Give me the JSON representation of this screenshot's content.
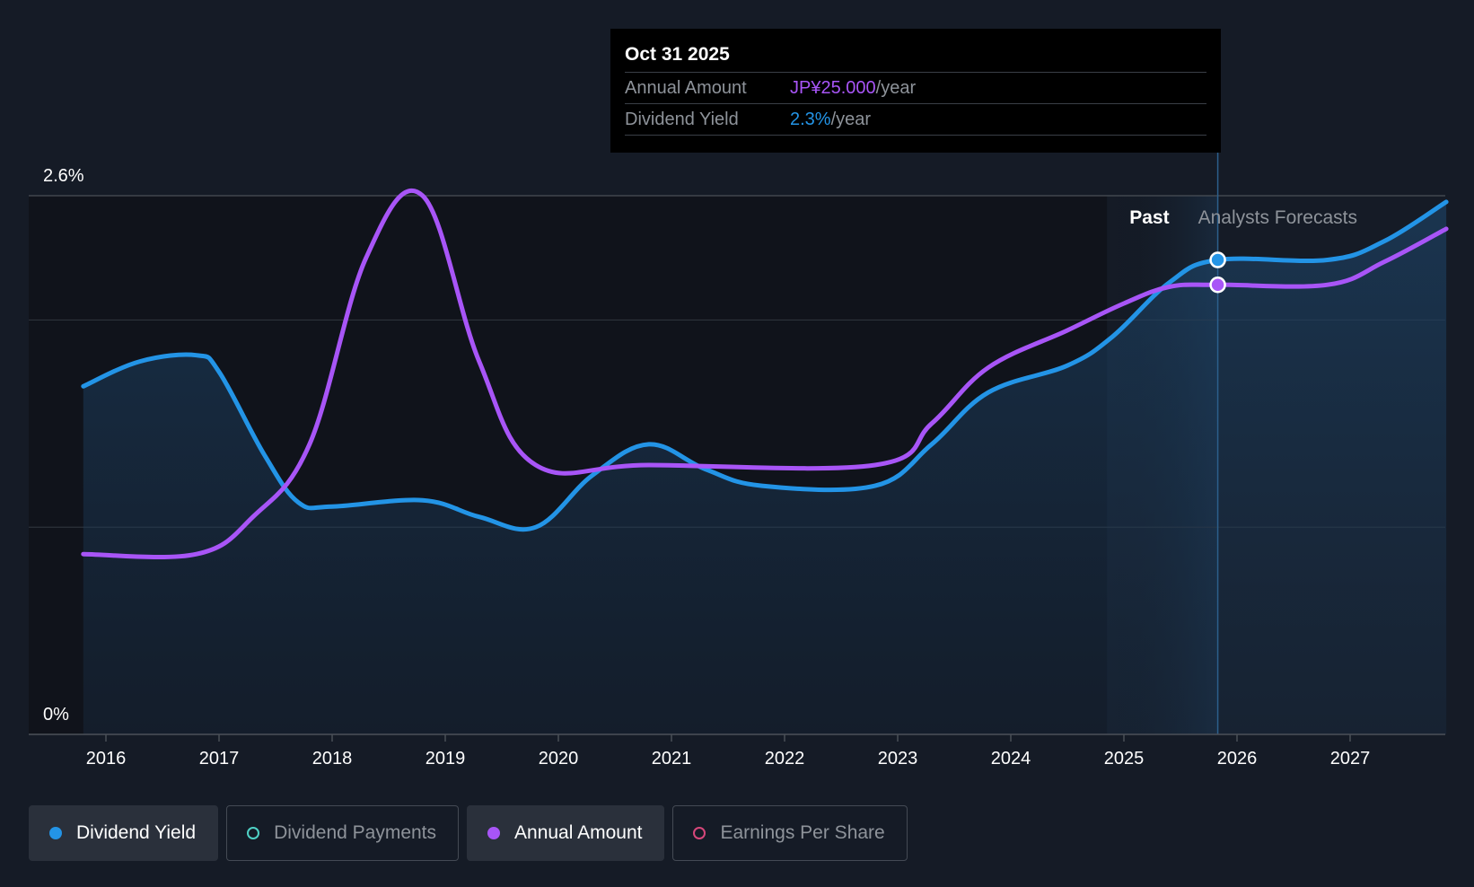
{
  "tooltip": {
    "date": "Oct 31 2025",
    "rows": [
      {
        "label": "Annual Amount",
        "value": "JP¥25.000",
        "unit": "/year"
      },
      {
        "label": "Dividend Yield",
        "value": "2.3%",
        "unit": "/year"
      }
    ]
  },
  "legend": [
    {
      "label": "Dividend Yield",
      "color": "#2394e6",
      "active": true
    },
    {
      "label": "Dividend Payments",
      "color": "#4fd1c5",
      "active": false
    },
    {
      "label": "Annual Amount",
      "color": "#a855f7",
      "active": true
    },
    {
      "label": "Earnings Per Share",
      "color": "#d6477a",
      "active": false
    }
  ],
  "chart_data": {
    "type": "line",
    "y_tick_labels": [
      "2.6%",
      "0%"
    ],
    "ylim": [
      0,
      2.6
    ],
    "x_ticks": [
      "2016",
      "2017",
      "2018",
      "2019",
      "2020",
      "2021",
      "2022",
      "2023",
      "2024",
      "2025",
      "2026",
      "2027"
    ],
    "xlim": [
      2015.5,
      2027.85
    ],
    "grid_y": [
      0,
      1.0,
      2.0,
      2.6
    ],
    "regions": {
      "past_label": "Past",
      "forecast_label": "Analysts Forecasts",
      "past_start": 2024.85,
      "divider": 2025.83
    },
    "series": [
      {
        "name": "Dividend Yield",
        "color": "#2394e6",
        "points": [
          [
            2015.8,
            1.68
          ],
          [
            2016.3,
            1.8
          ],
          [
            2016.8,
            1.83
          ],
          [
            2017.0,
            1.75
          ],
          [
            2017.4,
            1.35
          ],
          [
            2017.7,
            1.12
          ],
          [
            2018.0,
            1.1
          ],
          [
            2018.8,
            1.13
          ],
          [
            2019.3,
            1.05
          ],
          [
            2019.8,
            1.0
          ],
          [
            2020.3,
            1.25
          ],
          [
            2020.8,
            1.4
          ],
          [
            2021.3,
            1.28
          ],
          [
            2021.8,
            1.2
          ],
          [
            2022.8,
            1.2
          ],
          [
            2023.3,
            1.4
          ],
          [
            2023.8,
            1.65
          ],
          [
            2024.5,
            1.78
          ],
          [
            2024.9,
            1.92
          ],
          [
            2025.4,
            2.18
          ],
          [
            2025.83,
            2.29
          ],
          [
            2026.8,
            2.29
          ],
          [
            2027.3,
            2.38
          ],
          [
            2027.85,
            2.57
          ]
        ]
      },
      {
        "name": "Annual Amount",
        "color": "#a855f7",
        "points": [
          [
            2015.8,
            0.87
          ],
          [
            2016.8,
            0.87
          ],
          [
            2017.3,
            1.05
          ],
          [
            2017.8,
            1.4
          ],
          [
            2018.3,
            2.3
          ],
          [
            2018.8,
            2.6
          ],
          [
            2019.3,
            1.8
          ],
          [
            2019.8,
            1.3
          ],
          [
            2020.8,
            1.3
          ],
          [
            2022.8,
            1.3
          ],
          [
            2023.3,
            1.5
          ],
          [
            2023.8,
            1.77
          ],
          [
            2024.5,
            1.95
          ],
          [
            2025.0,
            2.08
          ],
          [
            2025.4,
            2.16
          ],
          [
            2025.83,
            2.17
          ],
          [
            2026.8,
            2.17
          ],
          [
            2027.3,
            2.28
          ],
          [
            2027.85,
            2.44
          ]
        ]
      }
    ],
    "tooltip_x": 2025.83,
    "tooltip_values": {
      "Dividend Yield": 2.29,
      "Annual Amount": 2.17
    }
  }
}
